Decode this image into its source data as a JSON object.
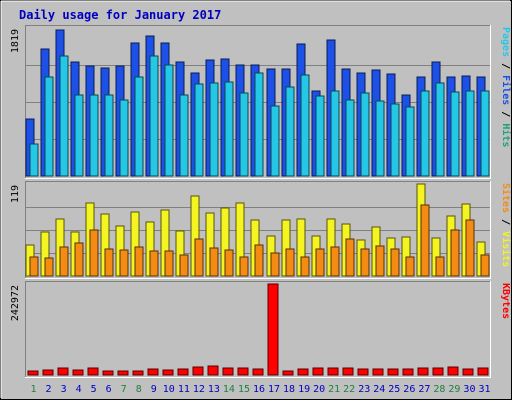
{
  "chart_data": {
    "type": "bar",
    "title": "Daily usage for January 2017",
    "categories": [
      "1",
      "2",
      "3",
      "4",
      "5",
      "6",
      "7",
      "8",
      "9",
      "10",
      "11",
      "12",
      "13",
      "14",
      "15",
      "16",
      "17",
      "18",
      "19",
      "20",
      "21",
      "22",
      "23",
      "24",
      "25",
      "26",
      "27",
      "28",
      "29",
      "30",
      "31"
    ],
    "weekend_days": [
      "1",
      "7",
      "8",
      "14",
      "15",
      "21",
      "22",
      "28",
      "29"
    ],
    "colors": {
      "background": "#c0c0c0",
      "panel": "#c0c0c0",
      "grid": "#808080",
      "title": "#0000c0",
      "weekday_label": "#0000c0",
      "weekend_label": "#208040",
      "pages": "#1c50e6",
      "files": "#24c8e6",
      "hits": "#20a080",
      "visits": "#f4f420",
      "sites": "#f48c14",
      "kbytes": "#ff0000",
      "separator": "#000000"
    },
    "panels": [
      {
        "id": "hits-files-pages",
        "max_label": "1819",
        "ymax": 1819,
        "right_labels": [
          {
            "text": "Pages",
            "color_key": "files"
          },
          {
            "text": " / ",
            "color_key": "separator"
          },
          {
            "text": "Files",
            "color_key": "pages"
          },
          {
            "text": " / ",
            "color_key": "separator"
          },
          {
            "text": "Hits",
            "color_key": "hits"
          }
        ],
        "series": [
          {
            "name": "Files",
            "color_key": "pages",
            "values": [
              700,
              1558,
              1790,
              1400,
              1350,
              1330,
              1350,
              1630,
              1720,
              1630,
              1400,
              1270,
              1420,
              1440,
              1365,
              1365,
              1320,
              1320,
              1620,
              1040,
              1670,
              1320,
              1270,
              1300,
              1250,
              990,
              1220,
              1400,
              1220,
              1230,
              1220
            ]
          },
          {
            "name": "Pages",
            "color_key": "files",
            "values": [
              392,
              1220,
              1474,
              1000,
              1000,
              1000,
              930,
              1220,
              1470,
              1360,
              1000,
              1130,
              1140,
              1160,
              1020,
              1270,
              860,
              1100,
              1240,
              980,
              1040,
              940,
              1020,
              920,
              880,
              850,
              1050,
              1140,
              1030,
              1040,
              1040
            ]
          }
        ]
      },
      {
        "id": "visits-sites",
        "max_label": "119",
        "ymax": 119,
        "right_labels": [
          {
            "text": "Sites",
            "color_key": "sites"
          },
          {
            "text": " / ",
            "color_key": "separator"
          },
          {
            "text": "Visits",
            "color_key": "visits"
          }
        ],
        "series": [
          {
            "name": "Visits",
            "color_key": "visits",
            "values": [
              40,
              57,
              74,
              57,
              95,
              80,
              65,
              83,
              70,
              85,
              58,
              104,
              82,
              88,
              95,
              72,
              52,
              72,
              74,
              52,
              74,
              67,
              46,
              64,
              49,
              51,
              119,
              49,
              78,
              93,
              44
            ]
          },
          {
            "name": "Sites",
            "color_key": "sites",
            "values": [
              24,
              23,
              37,
              43,
              60,
              35,
              34,
              37,
              32,
              32,
              27,
              48,
              36,
              33,
              24,
              40,
              30,
              35,
              25,
              35,
              38,
              48,
              35,
              39,
              35,
              25,
              92,
              24,
              59,
              72,
              27
            ]
          }
        ]
      },
      {
        "id": "kbytes",
        "max_label": "242972",
        "ymax": 242972,
        "right_labels": [
          {
            "text": "KBytes",
            "color_key": "kbytes"
          }
        ],
        "series": [
          {
            "name": "KBytes",
            "color_key": "kbytes",
            "values": [
              9500,
              14000,
              20000,
              13000,
              20000,
              10000,
              12000,
              12000,
              15000,
              13000,
              15000,
              22000,
              24000,
              20000,
              18000,
              15000,
              242972,
              12000,
              15000,
              18000,
              20000,
              18000,
              15000,
              15000,
              15000,
              16000,
              20000,
              19000,
              22000,
              17000,
              18000
            ]
          }
        ]
      }
    ]
  }
}
